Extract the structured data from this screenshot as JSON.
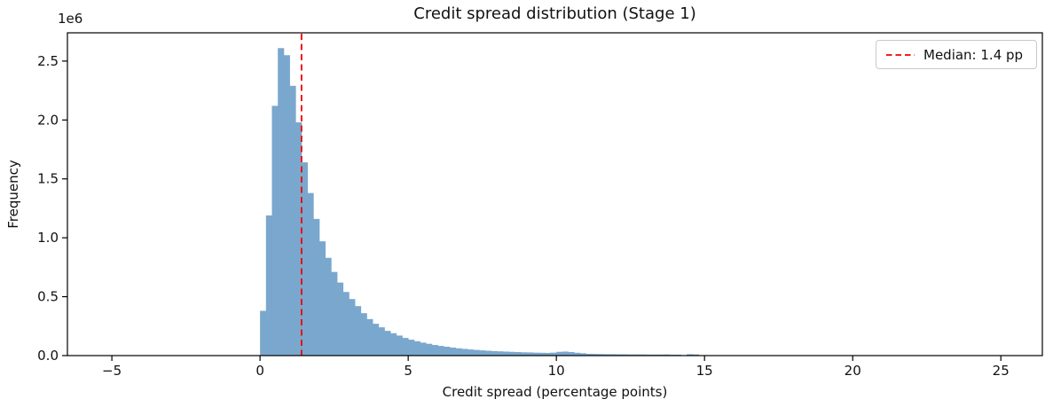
{
  "chart_data": {
    "type": "bar",
    "subtype": "histogram",
    "title": "Credit spread distribution (Stage 1)",
    "xlabel": "Credit spread (percentage points)",
    "ylabel": "Frequency",
    "y_offset_label": "1e6",
    "legend": {
      "label": "Median: 1.4 pp",
      "position": "upper right"
    },
    "median_pp": 1.4,
    "bin_start": 0.0,
    "bin_width": 0.2,
    "unit": "frequency counts in millions (1e6)",
    "values_millions": [
      0.38,
      1.19,
      2.12,
      2.61,
      2.55,
      2.29,
      1.98,
      1.64,
      1.38,
      1.16,
      0.97,
      0.83,
      0.71,
      0.62,
      0.54,
      0.48,
      0.42,
      0.36,
      0.31,
      0.27,
      0.24,
      0.21,
      0.19,
      0.17,
      0.15,
      0.135,
      0.122,
      0.11,
      0.1,
      0.09,
      0.082,
      0.075,
      0.068,
      0.062,
      0.057,
      0.052,
      0.048,
      0.044,
      0.041,
      0.038,
      0.036,
      0.034,
      0.032,
      0.03,
      0.028,
      0.027,
      0.025,
      0.024,
      0.023,
      0.025,
      0.032,
      0.034,
      0.03,
      0.024,
      0.02,
      0.015,
      0.014,
      0.013,
      0.012,
      0.012,
      0.011,
      0.011,
      0.01,
      0.01,
      0.01,
      0.009,
      0.009,
      0.009,
      0.01,
      0.008,
      0.008,
      0.0,
      0.012,
      0.01,
      0.0
    ],
    "xlim": [
      -6.5,
      26.4
    ],
    "ylim_millions": [
      0,
      2.74
    ],
    "xticks": [
      -5,
      0,
      5,
      10,
      15,
      20,
      25
    ],
    "xtick_labels": [
      "−5",
      "0",
      "5",
      "10",
      "15",
      "20",
      "25"
    ],
    "yticks_millions": [
      0.0,
      0.5,
      1.0,
      1.5,
      2.0,
      2.5
    ],
    "ytick_labels": [
      "0.0",
      "0.5",
      "1.0",
      "1.5",
      "2.0",
      "2.5"
    ],
    "grid": false,
    "legend_visible": true,
    "bar_color": "#7aa7cd",
    "median_line_color": "#f00000",
    "spine_color": "#000000",
    "text_color": "#111111"
  }
}
